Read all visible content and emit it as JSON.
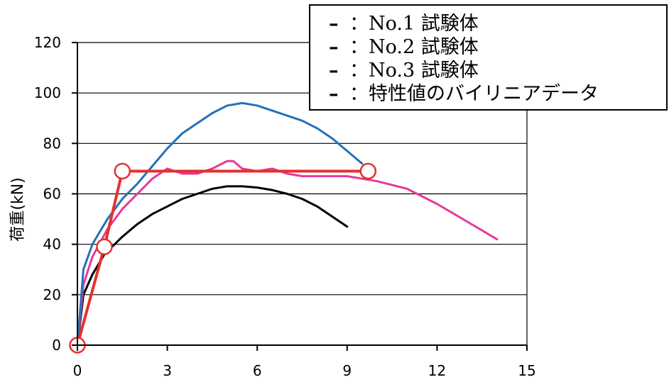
{
  "chart_data": {
    "type": "line",
    "ylabel": "荷重(kN)",
    "xlabel": "",
    "xlim": [
      0,
      15
    ],
    "ylim": [
      0,
      120
    ],
    "x_ticks": [
      "0",
      "3",
      "6",
      "9",
      "12",
      "15"
    ],
    "y_ticks": [
      "0",
      "20",
      "40",
      "60",
      "80",
      "100",
      "120"
    ],
    "grid": "horizontal",
    "legend_position": "top-right",
    "legend": [
      {
        "marker": "–",
        "text": "：No.1 試験体",
        "color": "#000000"
      },
      {
        "marker": "–",
        "text": "：No.2 試験体",
        "color": "#e8399a"
      },
      {
        "marker": "–",
        "text": "：No.3 試験体",
        "color": "#2471b8"
      },
      {
        "marker": "–",
        "text": "：特性値のバイリニアデータ",
        "color": "#e53030"
      }
    ],
    "series": [
      {
        "color": "#000000",
        "x": [
          0,
          0.2,
          0.5,
          0.9,
          1.5,
          2.0,
          2.5,
          3.0,
          3.5,
          4.0,
          4.5,
          5.0,
          5.5,
          6.0,
          6.5,
          7.0,
          7.5,
          8.0,
          8.5,
          9.0
        ],
        "y": [
          0,
          20,
          28,
          36,
          43,
          48,
          52,
          55,
          58,
          60,
          62,
          63,
          63,
          62.5,
          61.5,
          60,
          58,
          55,
          51,
          47
        ]
      },
      {
        "color": "#e8399a",
        "x": [
          0,
          0.2,
          0.5,
          1.0,
          1.5,
          2.0,
          2.5,
          3.0,
          3.5,
          4.0,
          4.5,
          5.0,
          5.2,
          5.5,
          6.0,
          6.5,
          7.0,
          7.5,
          8.0,
          9.0,
          10.0,
          11.0,
          12.0,
          13.0,
          14.0
        ],
        "y": [
          0,
          24,
          35,
          46,
          54,
          60,
          66,
          70,
          68,
          68,
          70,
          73,
          73,
          70,
          69,
          70,
          68,
          67,
          67,
          67,
          65,
          62,
          56,
          49,
          42
        ]
      },
      {
        "color": "#2471b8",
        "x": [
          0,
          0.2,
          0.5,
          1.0,
          1.5,
          2.0,
          2.5,
          3.0,
          3.5,
          4.0,
          4.5,
          5.0,
          5.5,
          6.0,
          6.5,
          7.0,
          7.5,
          8.0,
          8.5,
          9.0,
          9.5
        ],
        "y": [
          0,
          30,
          40,
          50,
          58,
          64,
          71,
          78,
          84,
          88,
          92,
          95,
          96,
          95,
          93,
          91,
          89,
          86,
          82,
          77,
          72
        ]
      },
      {
        "color": "#e53030",
        "bilinear": true,
        "x": [
          0,
          0.9,
          1.5,
          9.7
        ],
        "y": [
          0,
          39,
          69,
          69
        ]
      }
    ]
  }
}
